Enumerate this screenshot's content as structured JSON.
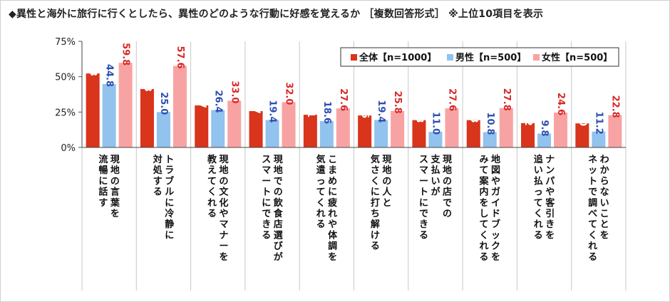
{
  "title": "◆異性と海外に旅行に行くとしたら、異性のどのような行動に好感を覚えるか ［複数回答形式］ ※上位10項目を表示",
  "chart_data": {
    "type": "bar",
    "ylim": [
      0,
      75
    ],
    "yticks": [
      0,
      25,
      50,
      75
    ],
    "ytick_labels": [
      "0%",
      "25%",
      "50%",
      "75%"
    ],
    "grid": false,
    "legend_position": "top-right",
    "categories": [
      [
        "現地の言葉を",
        "流暢に話す"
      ],
      [
        "トラブルに冷静に",
        "対処する"
      ],
      [
        "現地の文化やマナーを",
        "教えてくれる"
      ],
      [
        "現地での飲食店選びが",
        "スマートにできる"
      ],
      [
        "こまめに疲れや体調を",
        "気遣ってくれる"
      ],
      [
        "現地の人と",
        "気さくに打ち解ける"
      ],
      [
        "現地の店での",
        "支払いが",
        "スマートにできる"
      ],
      [
        "地図やガイドブックを",
        "みて案内をしてくれる"
      ],
      [
        "ナンパや客引きを",
        "追い払ってくれる"
      ],
      [
        "わからないことを",
        "ネットで調べてくれる"
      ]
    ],
    "series": [
      {
        "name": "全体【n=1000】",
        "color": "#d9341c",
        "label_color": "#ffffff",
        "values": [
          52.3,
          41.3,
          29.7,
          25.7,
          23.1,
          22.6,
          19.3,
          19.3,
          17.2,
          17.0
        ]
      },
      {
        "name": "男性【n=500】",
        "color": "#92c2ee",
        "label_color": "#2c4fb0",
        "values": [
          44.8,
          25.0,
          26.4,
          19.4,
          18.6,
          19.4,
          11.0,
          10.8,
          9.8,
          11.2
        ]
      },
      {
        "name": "女性【n=500】",
        "color": "#f8a3a3",
        "label_color": "#d82828",
        "values": [
          59.8,
          57.6,
          33.0,
          32.0,
          27.6,
          25.8,
          27.6,
          27.8,
          24.6,
          22.8
        ]
      }
    ]
  }
}
